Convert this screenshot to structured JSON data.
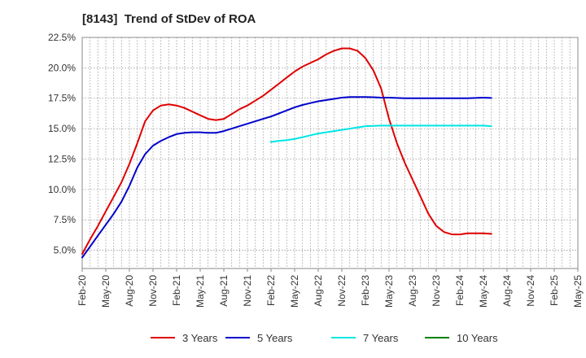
{
  "chart_data": {
    "type": "line",
    "title": "[8143]  Trend of StDev of ROA",
    "xlabel": "",
    "ylabel": "",
    "ylim": [
      3.5,
      22.5
    ],
    "grid": true,
    "legend_position": "bottom",
    "yticks": [
      5.0,
      7.5,
      10.0,
      12.5,
      15.0,
      17.5,
      20.0,
      22.5
    ],
    "ytick_labels": [
      "5.0%",
      "7.5%",
      "10.0%",
      "12.5%",
      "15.0%",
      "17.5%",
      "20.0%",
      "22.5%"
    ],
    "xtick_labels": [
      "Feb-20",
      "May-20",
      "Aug-20",
      "Nov-20",
      "Feb-21",
      "May-21",
      "Aug-21",
      "Nov-21",
      "Feb-22",
      "May-22",
      "Aug-22",
      "Nov-22",
      "Feb-23",
      "May-23",
      "Aug-23",
      "Nov-23",
      "Feb-24",
      "May-24",
      "Aug-24",
      "Nov-24",
      "Feb-25",
      "May-25"
    ],
    "series": [
      {
        "name": "3 Years",
        "color": "#e00000",
        "points": [
          [
            0,
            4.7
          ],
          [
            1,
            5.9
          ],
          [
            2,
            7.0
          ],
          [
            3,
            8.2
          ],
          [
            4,
            9.4
          ],
          [
            5,
            10.6
          ],
          [
            6,
            12.1
          ],
          [
            7,
            13.8
          ],
          [
            8,
            15.6
          ],
          [
            9,
            16.5
          ],
          [
            10,
            16.9
          ],
          [
            11,
            17.0
          ],
          [
            12,
            16.9
          ],
          [
            13,
            16.7
          ],
          [
            14,
            16.4
          ],
          [
            15,
            16.1
          ],
          [
            16,
            15.8
          ],
          [
            17,
            15.7
          ],
          [
            18,
            15.8
          ],
          [
            19,
            16.2
          ],
          [
            20,
            16.6
          ],
          [
            21,
            16.9
          ],
          [
            22,
            17.3
          ],
          [
            23,
            17.7
          ],
          [
            24,
            18.2
          ],
          [
            25,
            18.7
          ],
          [
            26,
            19.2
          ],
          [
            27,
            19.7
          ],
          [
            28,
            20.1
          ],
          [
            29,
            20.4
          ],
          [
            30,
            20.7
          ],
          [
            31,
            21.1
          ],
          [
            32,
            21.4
          ],
          [
            33,
            21.6
          ],
          [
            34,
            21.6
          ],
          [
            35,
            21.4
          ],
          [
            36,
            20.8
          ],
          [
            37,
            19.8
          ],
          [
            38,
            18.3
          ],
          [
            39,
            15.8
          ],
          [
            40,
            13.8
          ],
          [
            41,
            12.2
          ],
          [
            42,
            10.8
          ],
          [
            43,
            9.4
          ],
          [
            44,
            8.0
          ],
          [
            45,
            7.0
          ],
          [
            46,
            6.5
          ],
          [
            47,
            6.3
          ],
          [
            48,
            6.3
          ],
          [
            49,
            6.4
          ],
          [
            50,
            6.4
          ],
          [
            51,
            6.4
          ],
          [
            52,
            6.35
          ]
        ]
      },
      {
        "name": "5 Years",
        "color": "#0000cc",
        "points": [
          [
            0,
            4.4
          ],
          [
            1,
            5.3
          ],
          [
            2,
            6.2
          ],
          [
            3,
            7.1
          ],
          [
            4,
            8.0
          ],
          [
            5,
            9.0
          ],
          [
            6,
            10.3
          ],
          [
            7,
            11.8
          ],
          [
            8,
            12.9
          ],
          [
            9,
            13.6
          ],
          [
            10,
            14.0
          ],
          [
            11,
            14.3
          ],
          [
            12,
            14.55
          ],
          [
            13,
            14.65
          ],
          [
            14,
            14.7
          ],
          [
            15,
            14.7
          ],
          [
            16,
            14.65
          ],
          [
            17,
            14.65
          ],
          [
            18,
            14.8
          ],
          [
            19,
            15.0
          ],
          [
            20,
            15.2
          ],
          [
            21,
            15.4
          ],
          [
            22,
            15.6
          ],
          [
            23,
            15.8
          ],
          [
            24,
            16.0
          ],
          [
            25,
            16.25
          ],
          [
            26,
            16.5
          ],
          [
            27,
            16.75
          ],
          [
            28,
            16.95
          ],
          [
            29,
            17.1
          ],
          [
            30,
            17.25
          ],
          [
            31,
            17.35
          ],
          [
            32,
            17.45
          ],
          [
            33,
            17.55
          ],
          [
            34,
            17.6
          ],
          [
            35,
            17.6
          ],
          [
            36,
            17.6
          ],
          [
            37,
            17.58
          ],
          [
            38,
            17.55
          ],
          [
            39,
            17.55
          ],
          [
            40,
            17.52
          ],
          [
            41,
            17.5
          ],
          [
            42,
            17.5
          ],
          [
            43,
            17.5
          ],
          [
            44,
            17.5
          ],
          [
            45,
            17.5
          ],
          [
            46,
            17.5
          ],
          [
            47,
            17.5
          ],
          [
            48,
            17.5
          ],
          [
            49,
            17.5
          ],
          [
            50,
            17.52
          ],
          [
            51,
            17.55
          ],
          [
            52,
            17.52
          ]
        ]
      },
      {
        "name": "7 Years",
        "color": "#00e5e5",
        "points": [
          [
            24,
            13.9
          ],
          [
            25,
            14.0
          ],
          [
            26,
            14.05
          ],
          [
            27,
            14.15
          ],
          [
            28,
            14.3
          ],
          [
            29,
            14.45
          ],
          [
            30,
            14.6
          ],
          [
            31,
            14.7
          ],
          [
            32,
            14.8
          ],
          [
            33,
            14.9
          ],
          [
            34,
            15.0
          ],
          [
            35,
            15.1
          ],
          [
            36,
            15.2
          ],
          [
            37,
            15.22
          ],
          [
            38,
            15.25
          ],
          [
            39,
            15.25
          ],
          [
            40,
            15.25
          ],
          [
            41,
            15.25
          ],
          [
            42,
            15.25
          ],
          [
            43,
            15.25
          ],
          [
            44,
            15.25
          ],
          [
            45,
            15.25
          ],
          [
            46,
            15.25
          ],
          [
            47,
            15.25
          ],
          [
            48,
            15.25
          ],
          [
            49,
            15.25
          ],
          [
            50,
            15.25
          ],
          [
            51,
            15.25
          ],
          [
            52,
            15.2
          ]
        ]
      },
      {
        "name": "10 Years",
        "color": "#008000",
        "points": []
      }
    ]
  }
}
